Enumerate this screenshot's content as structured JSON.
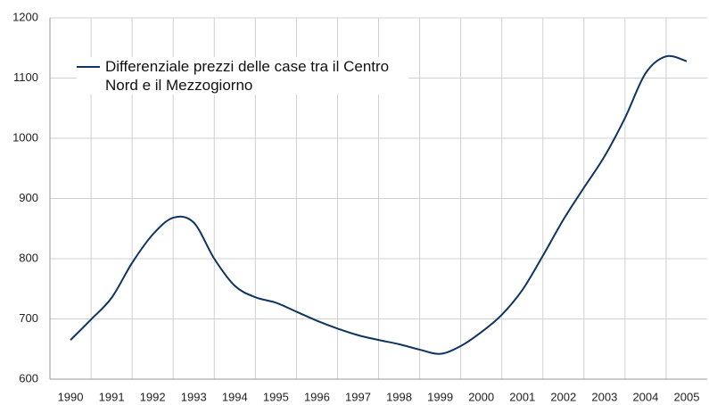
{
  "chart_data": {
    "type": "line",
    "x": [
      1990,
      1990.5,
      1991,
      1991.5,
      1992,
      1992.5,
      1993,
      1993.5,
      1994,
      1994.5,
      1995,
      1995.5,
      1996,
      1996.5,
      1997,
      1997.5,
      1998,
      1998.5,
      1999,
      1999.5,
      2000,
      2000.5,
      2001,
      2001.5,
      2002,
      2002.5,
      2003,
      2003.5,
      2004,
      2004.5,
      2005
    ],
    "series": [
      {
        "name": "Differenziale prezzi delle case tra il Centro Nord e il Mezzogiorno",
        "color": "#0e3460",
        "values": [
          665,
          699,
          735,
          793,
          840,
          868,
          860,
          800,
          755,
          736,
          727,
          712,
          697,
          684,
          673,
          665,
          658,
          649,
          642,
          655,
          678,
          707,
          748,
          805,
          865,
          918,
          970,
          1034,
          1108,
          1136,
          1128
        ]
      }
    ],
    "xlim": [
      1989.5,
      2005.5
    ],
    "xticks": [
      1990,
      1991,
      1992,
      1993,
      1994,
      1995,
      1996,
      1997,
      1998,
      1999,
      2000,
      2001,
      2002,
      2003,
      2004,
      2005
    ],
    "ylim": [
      600,
      1200
    ],
    "yticks": [
      600,
      700,
      800,
      900,
      1000,
      1100,
      1200
    ],
    "grid": true,
    "legend": "upper left"
  }
}
